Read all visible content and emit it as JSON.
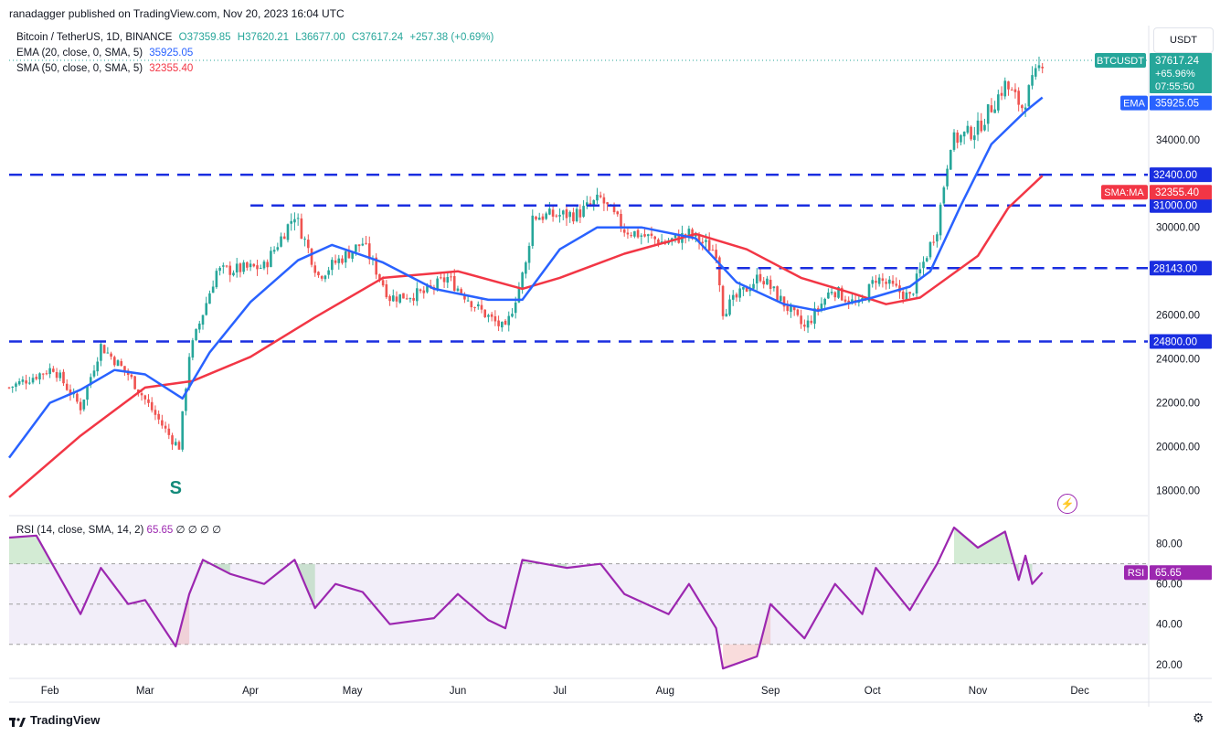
{
  "header": {
    "publisher": "ranadagger published on TradingView.com, Nov 20, 2023 16:04 UTC"
  },
  "legend": {
    "symbol": "Bitcoin / TetherUS, 1D, BINANCE",
    "open": "O37359.85",
    "high": "H37620.21",
    "low": "L36677.00",
    "close": "C37617.24",
    "change": "+257.38 (+0.69%)",
    "ema_label": "EMA (20, close, 0, SMA, 5)",
    "ema_value": "35925.05",
    "sma_label": "SMA (50, close, 0, SMA, 5)",
    "sma_value": "32355.40",
    "rsi_label": "RSI (14, close, SMA, 14, 2)",
    "rsi_value": "65.65",
    "rsi_extra": "∅ ∅ ∅ ∅"
  },
  "axis_unit": "USDT",
  "branding": "TradingView",
  "colors": {
    "up": "#26a69a",
    "down": "#ef5350",
    "ema": "#2962ff",
    "sma": "#f23645",
    "levels": "#1a2ee0",
    "rsi": "#9c27b0",
    "rsi_band": "#ede7f6",
    "price_tag": "#26a69a"
  },
  "chart_data": [
    {
      "type": "candlestick",
      "title": "",
      "x_labels": [
        "Feb",
        "Mar",
        "Apr",
        "May",
        "Jun",
        "Jul",
        "Aug",
        "Sep",
        "Oct",
        "Nov",
        "Dec"
      ],
      "y_ticks": [
        "18000.00",
        "20000.00",
        "22000.00",
        "24000.00",
        "26000.00",
        "28000.00",
        "30000.00",
        "34000.00"
      ],
      "ylim": [
        16900,
        39200
      ],
      "close_path": [
        [
          "2023-01-20",
          22700
        ],
        [
          "2023-02-02",
          23600
        ],
        [
          "2023-02-10",
          21800
        ],
        [
          "2023-02-16",
          24600
        ],
        [
          "2023-02-24",
          23300
        ],
        [
          "2023-03-09",
          20300
        ],
        [
          "2023-03-11",
          20000
        ],
        [
          "2023-03-14",
          24200
        ],
        [
          "2023-03-22",
          28000
        ],
        [
          "2023-04-05",
          28200
        ],
        [
          "2023-04-14",
          30600
        ],
        [
          "2023-04-21",
          27800
        ],
        [
          "2023-04-26",
          28400
        ],
        [
          "2023-05-04",
          29300
        ],
        [
          "2023-05-12",
          26800
        ],
        [
          "2023-05-22",
          27000
        ],
        [
          "2023-05-29",
          27700
        ],
        [
          "2023-06-07",
          26300
        ],
        [
          "2023-06-15",
          25300
        ],
        [
          "2023-06-21",
          28300
        ],
        [
          "2023-06-23",
          30500
        ],
        [
          "2023-07-06",
          30600
        ],
        [
          "2023-07-13",
          31300
        ],
        [
          "2023-07-20",
          29900
        ],
        [
          "2023-08-01",
          29300
        ],
        [
          "2023-08-08",
          29700
        ],
        [
          "2023-08-16",
          28900
        ],
        [
          "2023-08-18",
          26200
        ],
        [
          "2023-08-29",
          27800
        ],
        [
          "2023-09-11",
          25400
        ],
        [
          "2023-09-19",
          27200
        ],
        [
          "2023-09-27",
          26400
        ],
        [
          "2023-10-02",
          27700
        ],
        [
          "2023-10-12",
          26800
        ],
        [
          "2023-10-20",
          30000
        ],
        [
          "2023-10-24",
          33900
        ],
        [
          "2023-11-01",
          34500
        ],
        [
          "2023-11-09",
          36500
        ],
        [
          "2023-11-14",
          35500
        ],
        [
          "2023-11-16",
          36200
        ],
        [
          "2023-11-20",
          37617
        ]
      ],
      "ema20_path": [
        [
          "2023-01-20",
          19500
        ],
        [
          "2023-02-01",
          22000
        ],
        [
          "2023-02-10",
          22600
        ],
        [
          "2023-02-20",
          23500
        ],
        [
          "2023-03-01",
          23300
        ],
        [
          "2023-03-12",
          22200
        ],
        [
          "2023-03-20",
          24300
        ],
        [
          "2023-04-01",
          26600
        ],
        [
          "2023-04-15",
          28500
        ],
        [
          "2023-04-25",
          29200
        ],
        [
          "2023-05-10",
          28400
        ],
        [
          "2023-05-25",
          27200
        ],
        [
          "2023-06-10",
          26700
        ],
        [
          "2023-06-20",
          26700
        ],
        [
          "2023-07-01",
          29000
        ],
        [
          "2023-07-12",
          30000
        ],
        [
          "2023-07-25",
          30000
        ],
        [
          "2023-08-10",
          29500
        ],
        [
          "2023-08-22",
          27500
        ],
        [
          "2023-09-05",
          26500
        ],
        [
          "2023-09-15",
          26200
        ],
        [
          "2023-10-01",
          26800
        ],
        [
          "2023-10-12",
          27300
        ],
        [
          "2023-10-18",
          28000
        ],
        [
          "2023-10-27",
          31000
        ],
        [
          "2023-11-05",
          33800
        ],
        [
          "2023-11-15",
          35300
        ],
        [
          "2023-11-20",
          35925
        ]
      ],
      "sma50_path": [
        [
          "2023-01-20",
          17700
        ],
        [
          "2023-02-10",
          20500
        ],
        [
          "2023-03-01",
          22700
        ],
        [
          "2023-03-15",
          23000
        ],
        [
          "2023-04-01",
          24100
        ],
        [
          "2023-04-20",
          25900
        ],
        [
          "2023-05-10",
          27700
        ],
        [
          "2023-06-01",
          28000
        ],
        [
          "2023-06-20",
          27200
        ],
        [
          "2023-07-01",
          27700
        ],
        [
          "2023-07-20",
          28800
        ],
        [
          "2023-08-10",
          29700
        ],
        [
          "2023-08-25",
          29000
        ],
        [
          "2023-09-10",
          27700
        ],
        [
          "2023-09-25",
          27000
        ],
        [
          "2023-10-05",
          26500
        ],
        [
          "2023-10-15",
          26800
        ],
        [
          "2023-11-01",
          28700
        ],
        [
          "2023-11-10",
          30900
        ],
        [
          "2023-11-20",
          32355
        ]
      ],
      "levels": [
        {
          "label": "32400.00",
          "value": 32400,
          "from": "2023-01-20"
        },
        {
          "label": "31000.00",
          "value": 31000,
          "from": "2023-04-01"
        },
        {
          "label": "28143.00",
          "value": 28143,
          "from": "2023-08-16"
        },
        {
          "label": "24800.00",
          "value": 24800,
          "from": "2023-01-20"
        }
      ],
      "price_tags": [
        {
          "name": "BTCUSDT",
          "value": "37617.24",
          "extra": [
            "+65.96%",
            "07:55:50"
          ]
        },
        {
          "name": "EMA",
          "value": "35925.05"
        },
        {
          "name": "SMA:MA",
          "value": "32355.40"
        }
      ],
      "annotations": [
        {
          "text": "S",
          "x": "2023-03-10",
          "y": 18200
        }
      ]
    },
    {
      "type": "line",
      "title": "",
      "y_ticks": [
        "20.00",
        "40.00",
        "60.00",
        "80.00"
      ],
      "ylim": [
        14,
        93
      ],
      "band": [
        30,
        70
      ],
      "series": [
        {
          "values": [
            [
              "2023-01-20",
              83
            ],
            [
              "2023-01-28",
              84
            ],
            [
              "2023-02-02",
              69
            ],
            [
              "2023-02-10",
              45
            ],
            [
              "2023-02-16",
              68
            ],
            [
              "2023-02-24",
              50
            ],
            [
              "2023-03-01",
              52
            ],
            [
              "2023-03-10",
              29
            ],
            [
              "2023-03-14",
              55
            ],
            [
              "2023-03-18",
              72
            ],
            [
              "2023-03-26",
              65
            ],
            [
              "2023-04-05",
              60
            ],
            [
              "2023-04-14",
              72
            ],
            [
              "2023-04-20",
              48
            ],
            [
              "2023-04-26",
              60
            ],
            [
              "2023-05-04",
              56
            ],
            [
              "2023-05-12",
              40
            ],
            [
              "2023-05-25",
              43
            ],
            [
              "2023-06-01",
              55
            ],
            [
              "2023-06-10",
              42
            ],
            [
              "2023-06-15",
              38
            ],
            [
              "2023-06-20",
              72
            ],
            [
              "2023-07-03",
              68
            ],
            [
              "2023-07-13",
              70
            ],
            [
              "2023-07-20",
              55
            ],
            [
              "2023-08-02",
              45
            ],
            [
              "2023-08-08",
              60
            ],
            [
              "2023-08-16",
              38
            ],
            [
              "2023-08-18",
              18
            ],
            [
              "2023-08-28",
              24
            ],
            [
              "2023-09-01",
              50
            ],
            [
              "2023-09-11",
              33
            ],
            [
              "2023-09-20",
              60
            ],
            [
              "2023-09-28",
              45
            ],
            [
              "2023-10-02",
              68
            ],
            [
              "2023-10-12",
              47
            ],
            [
              "2023-10-20",
              70
            ],
            [
              "2023-10-25",
              88
            ],
            [
              "2023-11-01",
              78
            ],
            [
              "2023-11-09",
              86
            ],
            [
              "2023-11-13",
              62
            ],
            [
              "2023-11-15",
              74
            ],
            [
              "2023-11-17",
              60
            ],
            [
              "2023-11-20",
              65.65
            ]
          ]
        }
      ],
      "value_tag": {
        "name": "RSI",
        "value": "65.65"
      }
    }
  ]
}
